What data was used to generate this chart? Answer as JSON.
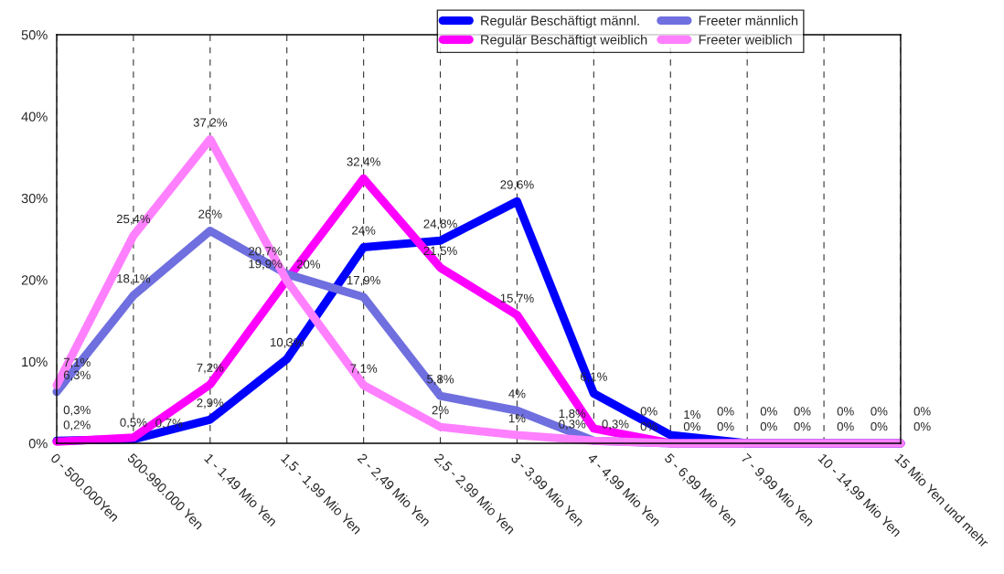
{
  "chart_data": {
    "type": "line",
    "categories": [
      "0 - 500.000Yen",
      "500-990.000 Yen",
      "1 - 1,49 Mio Yen",
      "1,5 - 1,99 Mio Yen",
      "2 - 2,49 Mio Yen",
      "2,5 - 2,99 Mio Yen",
      "3 - 3,99 Mio Yen",
      "4 - 4,99 Mio Yen",
      "5 - 6,99 Mio Yen",
      "7 - 9,99 Mio Yen",
      "10 - 14,99 Mio Yen",
      "15 Mio Yen und mehr"
    ],
    "series": [
      {
        "name": "Regulär Beschäftigt männl.",
        "color": "#0000ff",
        "values": [
          0.3,
          0.5,
          2.9,
          10.3,
          24,
          24.8,
          29.6,
          6.1,
          1,
          0,
          0,
          0
        ],
        "value_labels": [
          "0,3%",
          "0,5%",
          "2,9%",
          "10,3%",
          "24%",
          "24,8%",
          "29,6%",
          "6,1%",
          "1%",
          "0%",
          "0%",
          "0%"
        ]
      },
      {
        "name": "Regulär Beschäftigt weiblich",
        "color": "#ff00ff",
        "values": [
          0.2,
          0.7,
          7.2,
          20,
          32.4,
          21.5,
          15.7,
          1.8,
          0,
          0,
          0,
          0
        ],
        "value_labels": [
          "0,2%",
          "0,7%",
          "7,2%",
          "20%",
          "32,4%",
          "21,5%",
          "15,7%",
          "1,8%",
          "0%",
          "0%",
          "0%",
          "0%"
        ]
      },
      {
        "name": "Freeter männlich",
        "color": "#6f6fdf",
        "values": [
          6.3,
          18.1,
          26,
          20.7,
          17.9,
          5.8,
          4,
          0.3,
          0,
          0,
          0,
          0
        ],
        "value_labels": [
          "6,3%",
          "18,1%",
          "26%",
          "20,7%",
          "17,9%",
          "5,8%",
          "4%",
          "0,3%",
          "0%",
          "0%",
          "0%",
          "0%"
        ]
      },
      {
        "name": "Freeter weiblich",
        "color": "#ff80ff",
        "values": [
          7.1,
          25.4,
          37.2,
          19.9,
          7.1,
          2,
          1,
          0.3,
          0,
          0,
          0,
          0
        ],
        "value_labels": [
          "7,1%",
          "25,4%",
          "37,2%",
          "19,9%",
          "7,1%",
          "2%",
          "1%",
          "0,3%",
          "0%",
          "0%",
          "0%",
          "0%"
        ]
      }
    ],
    "ylim": [
      0,
      50
    ],
    "yticks": [
      {
        "value": 0,
        "label": "0%"
      },
      {
        "value": 10,
        "label": "10%"
      },
      {
        "value": 20,
        "label": "20%"
      },
      {
        "value": 30,
        "label": "30%"
      },
      {
        "value": 40,
        "label": "40%"
      },
      {
        "value": 50,
        "label": "50%"
      }
    ],
    "grid": "x",
    "legend": "top right",
    "marker": "none",
    "line_style": "solid"
  }
}
